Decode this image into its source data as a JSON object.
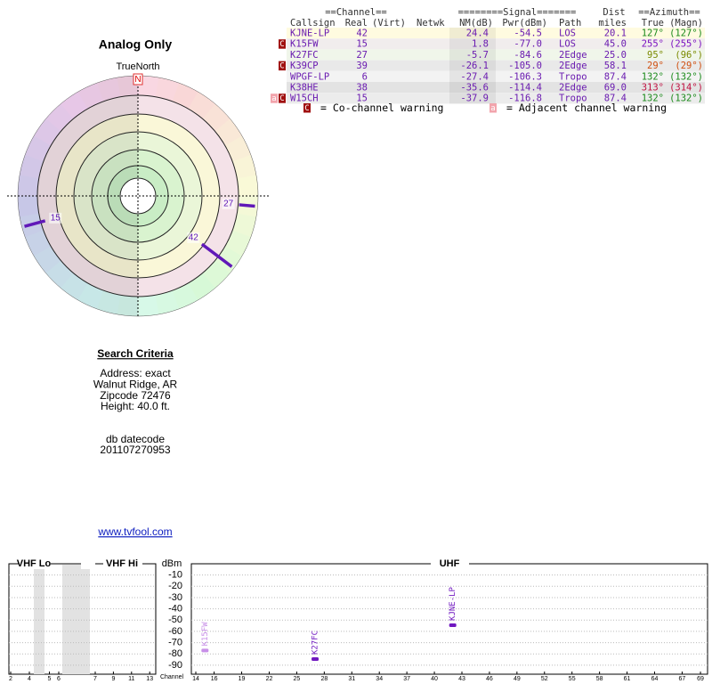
{
  "header": {
    "title": "Analog Only"
  },
  "radar": {
    "north_label": "TrueNorth",
    "north_mark": "N",
    "markers": [
      {
        "label": "42",
        "azimuth": 127,
        "pwr": -54.5
      },
      {
        "label": "15",
        "azimuth": 255,
        "pwr": -77.0
      },
      {
        "label": "27",
        "azimuth": 95,
        "pwr": -84.6
      }
    ],
    "color": "#6018b8"
  },
  "search": {
    "title": "Search Criteria",
    "lines": [
      "Address: exact",
      "Walnut Ridge, AR",
      "Zipcode 72476",
      "Height: 40.0 ft."
    ],
    "datecode_label": "db datecode",
    "datecode": "201107270953",
    "link": "www.tvfool.com"
  },
  "table": {
    "header_top": [
      "==Channel==",
      "========Signal=======",
      "Dist",
      "==Azimuth=="
    ],
    "header": [
      "Callsign",
      "Real",
      "(Virt)",
      "Netwk",
      "NM(dB)",
      "Pwr(dBm)",
      "Path",
      "miles",
      "True",
      "(Magn)"
    ],
    "warning_colors": {
      "C": "#a01010",
      "a": "#f2a4ac"
    },
    "rows": [
      {
        "callsign": "KJNE-LP",
        "real": "42",
        "nm": "24.4",
        "pwr": "-54.5",
        "path": "LOS",
        "dist": "20.1",
        "true": "127°",
        "magn": "(127°)",
        "color": "#1a8a1a"
      },
      {
        "callsign": "K15FW",
        "real": "15",
        "nm": "1.8",
        "pwr": "-77.0",
        "path": "LOS",
        "dist": "45.0",
        "true": "255°",
        "magn": "(255°)",
        "color": "#7a10c0",
        "warnings": [
          "C"
        ]
      },
      {
        "callsign": "K27FC",
        "real": "27",
        "nm": "-5.7",
        "pwr": "-84.6",
        "path": "2Edge",
        "dist": "25.0",
        "true": "95°",
        "magn": "(96°)",
        "color": "#7a8a00"
      },
      {
        "callsign": "K39CP",
        "real": "39",
        "nm": "-26.1",
        "pwr": "-105.0",
        "path": "2Edge",
        "dist": "58.1",
        "true": "29°",
        "magn": "(29°)",
        "color": "#d05010",
        "warnings": [
          "C"
        ]
      },
      {
        "callsign": "WPGF-LP",
        "real": "6",
        "nm": "-27.4",
        "pwr": "-106.3",
        "path": "Tropo",
        "dist": "87.4",
        "true": "132°",
        "magn": "(132°)",
        "color": "#1a8a1a"
      },
      {
        "callsign": "K38HE",
        "real": "38",
        "nm": "-35.6",
        "pwr": "-114.4",
        "path": "2Edge",
        "dist": "69.0",
        "true": "313°",
        "magn": "(314°)",
        "color": "#c01040"
      },
      {
        "callsign": "W15CH",
        "real": "15",
        "nm": "-37.9",
        "pwr": "-116.8",
        "path": "Tropo",
        "dist": "87.4",
        "true": "132°",
        "magn": "(132°)",
        "color": "#1a8a1a",
        "warnings": [
          "a",
          "C"
        ]
      }
    ],
    "legend": [
      {
        "mark": "C",
        "text": "= Co-channel warning"
      },
      {
        "mark": "a",
        "text": "= Adjacent channel warning"
      }
    ]
  },
  "spectrum": {
    "sections": [
      "VHF Lo",
      "VHF Hi",
      "UHF"
    ],
    "y_label": "dBm",
    "x_label": "Channel",
    "ylim": [
      -98,
      0
    ],
    "yticks": [
      -10,
      -20,
      -30,
      -40,
      -50,
      -60,
      -70,
      -80,
      -90
    ],
    "vhf_channels": [
      2,
      4,
      5,
      6,
      7,
      9,
      11,
      13
    ],
    "uhf_channels": [
      14,
      16,
      19,
      22,
      25,
      28,
      31,
      34,
      37,
      40,
      43,
      46,
      49,
      52,
      55,
      58,
      61,
      64,
      67,
      69
    ],
    "stations": [
      {
        "callsign": "K15FW",
        "channel": 15,
        "dbm": -77.0,
        "color": "#c890e8"
      },
      {
        "callsign": "K27FC",
        "channel": 27,
        "dbm": -84.6,
        "color": "#7018c0"
      },
      {
        "callsign": "KJNE-LP",
        "channel": 42,
        "dbm": -54.5,
        "color": "#7018c0"
      }
    ]
  }
}
